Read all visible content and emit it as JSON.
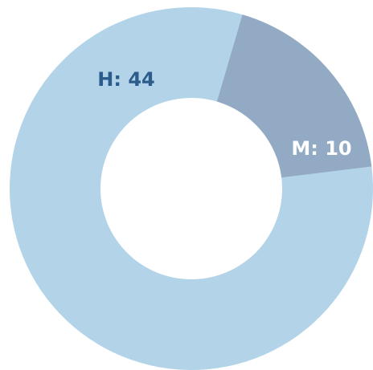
{
  "chart_data": {
    "type": "donut",
    "values": [
      44,
      10
    ],
    "value_labels": [
      "H: 44",
      "M: 10"
    ],
    "colors": [
      "#b3d4e8",
      "#93aac4"
    ],
    "label_colors": [
      "#2b5c8c",
      "#ffffff"
    ]
  }
}
